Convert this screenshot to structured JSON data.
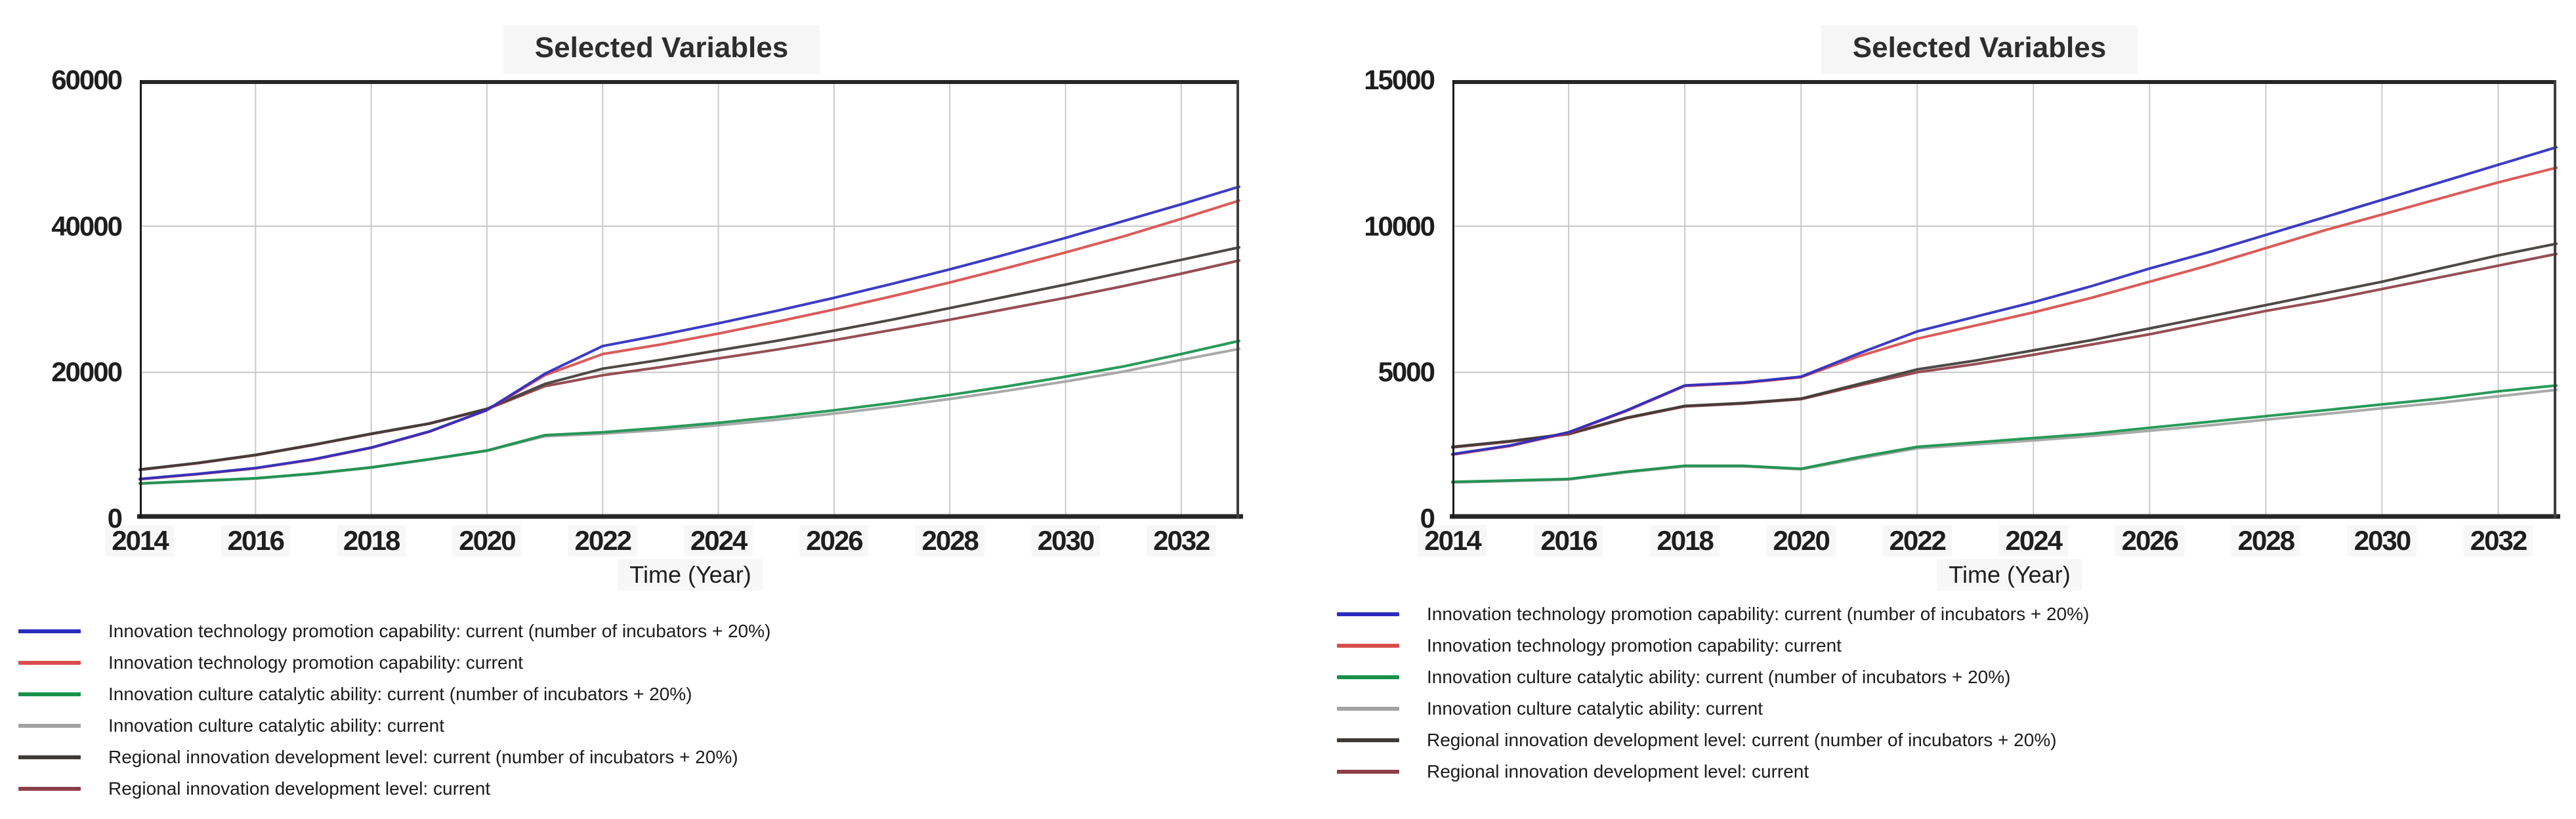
{
  "figure": {
    "background": "#ffffff"
  },
  "chart_data": [
    {
      "type": "line",
      "title": "Selected Variables",
      "xlabel": "Time (Year)",
      "x": [
        2014,
        2015,
        2016,
        2017,
        2018,
        2019,
        2020,
        2021,
        2022,
        2023,
        2024,
        2025,
        2026,
        2027,
        2028,
        2029,
        2030,
        2031,
        2032,
        2033
      ],
      "xticks": [
        2014,
        2016,
        2018,
        2020,
        2022,
        2024,
        2026,
        2028,
        2030,
        2032
      ],
      "ylim": [
        0,
        60000
      ],
      "yticks": [
        0,
        20000,
        40000,
        60000
      ],
      "grid": true,
      "legend_position": "below-left",
      "series": [
        {
          "name": "Innovation technology promotion capability: current (number of incubators + 20%)",
          "color": "#2b2bbf",
          "values": [
            5400,
            6100,
            6900,
            8100,
            9700,
            11900,
            14850,
            19800,
            23600,
            25100,
            26700,
            28400,
            30200,
            32100,
            34100,
            36200,
            38400,
            40700,
            43000,
            45400
          ]
        },
        {
          "name": "Innovation technology promotion capability: current",
          "color": "#d84d4d",
          "values": [
            5350,
            6050,
            6850,
            8050,
            9650,
            11850,
            14800,
            19600,
            22500,
            23800,
            25300,
            26900,
            28600,
            30400,
            32300,
            34300,
            36400,
            38600,
            41000,
            43500
          ]
        },
        {
          "name": "Innovation culture catalytic ability: current (number of incubators + 20%)",
          "color": "#17914b",
          "values": [
            4800,
            5150,
            5500,
            6150,
            7000,
            8100,
            9300,
            11400,
            11800,
            12400,
            13100,
            13900,
            14800,
            15800,
            16900,
            18100,
            19400,
            20800,
            22500,
            24300
          ]
        },
        {
          "name": "Innovation culture catalytic ability: current",
          "color": "#a2a2a2",
          "values": [
            4750,
            5100,
            5450,
            6100,
            6950,
            8050,
            9250,
            11250,
            11600,
            12100,
            12750,
            13500,
            14350,
            15300,
            16350,
            17500,
            18750,
            20100,
            21700,
            23200
          ]
        },
        {
          "name": "Regional innovation development level: current (number of incubators + 20%)",
          "color": "#3f3a36",
          "values": [
            6700,
            7600,
            8700,
            10100,
            11600,
            13000,
            15000,
            18400,
            20500,
            21700,
            23000,
            24300,
            25700,
            27200,
            28800,
            30400,
            32000,
            33700,
            35400,
            37100
          ]
        },
        {
          "name": "Regional innovation development level: current",
          "color": "#8d3f47",
          "values": [
            6650,
            7550,
            8650,
            10050,
            11550,
            12950,
            14950,
            18100,
            19600,
            20700,
            21900,
            23100,
            24400,
            25800,
            27200,
            28700,
            30200,
            31800,
            33500,
            35300
          ]
        }
      ]
    },
    {
      "type": "line",
      "title": "Selected Variables",
      "xlabel": "Time (Year)",
      "x": [
        2014,
        2015,
        2016,
        2017,
        2018,
        2019,
        2020,
        2021,
        2022,
        2023,
        2024,
        2025,
        2026,
        2027,
        2028,
        2029,
        2030,
        2031,
        2032,
        2033
      ],
      "xticks": [
        2014,
        2016,
        2018,
        2020,
        2022,
        2024,
        2026,
        2028,
        2030,
        2032
      ],
      "ylim": [
        0,
        15000
      ],
      "yticks": [
        0,
        5000,
        10000,
        15000
      ],
      "grid": true,
      "legend_position": "below-left",
      "series": [
        {
          "name": "Innovation technology promotion capability: current (number of incubators + 20%)",
          "color": "#2b2bbf",
          "values": [
            2200,
            2500,
            2950,
            3700,
            4550,
            4650,
            4850,
            5650,
            6400,
            6900,
            7400,
            7950,
            8550,
            9100,
            9700,
            10300,
            10900,
            11500,
            12100,
            12700
          ]
        },
        {
          "name": "Innovation technology promotion capability: current",
          "color": "#d84d4d",
          "values": [
            2180,
            2480,
            2930,
            3680,
            4530,
            4630,
            4830,
            5550,
            6150,
            6600,
            7050,
            7550,
            8100,
            8650,
            9250,
            9850,
            10400,
            10950,
            11500,
            12000
          ]
        },
        {
          "name": "Innovation culture catalytic ability: current (number of incubators + 20%)",
          "color": "#17914b",
          "values": [
            1250,
            1300,
            1350,
            1600,
            1800,
            1800,
            1700,
            2100,
            2450,
            2600,
            2750,
            2900,
            3100,
            3300,
            3500,
            3700,
            3900,
            4100,
            4350,
            4550
          ]
        },
        {
          "name": "Innovation culture catalytic ability: current",
          "color": "#a2a2a2",
          "values": [
            1230,
            1280,
            1330,
            1580,
            1780,
            1780,
            1680,
            2050,
            2400,
            2530,
            2670,
            2820,
            3000,
            3180,
            3380,
            3570,
            3770,
            3960,
            4180,
            4400
          ]
        },
        {
          "name": "Regional innovation development level: current (number of incubators + 20%)",
          "color": "#3f3a36",
          "values": [
            2450,
            2650,
            2900,
            3450,
            3850,
            3950,
            4100,
            4600,
            5100,
            5400,
            5750,
            6100,
            6500,
            6900,
            7300,
            7700,
            8100,
            8550,
            9000,
            9400
          ]
        },
        {
          "name": "Regional innovation development level: current",
          "color": "#8d3f47",
          "values": [
            2430,
            2630,
            2880,
            3430,
            3830,
            3930,
            4080,
            4550,
            5000,
            5280,
            5600,
            5950,
            6300,
            6700,
            7100,
            7450,
            7850,
            8250,
            8650,
            9050
          ]
        }
      ]
    }
  ]
}
